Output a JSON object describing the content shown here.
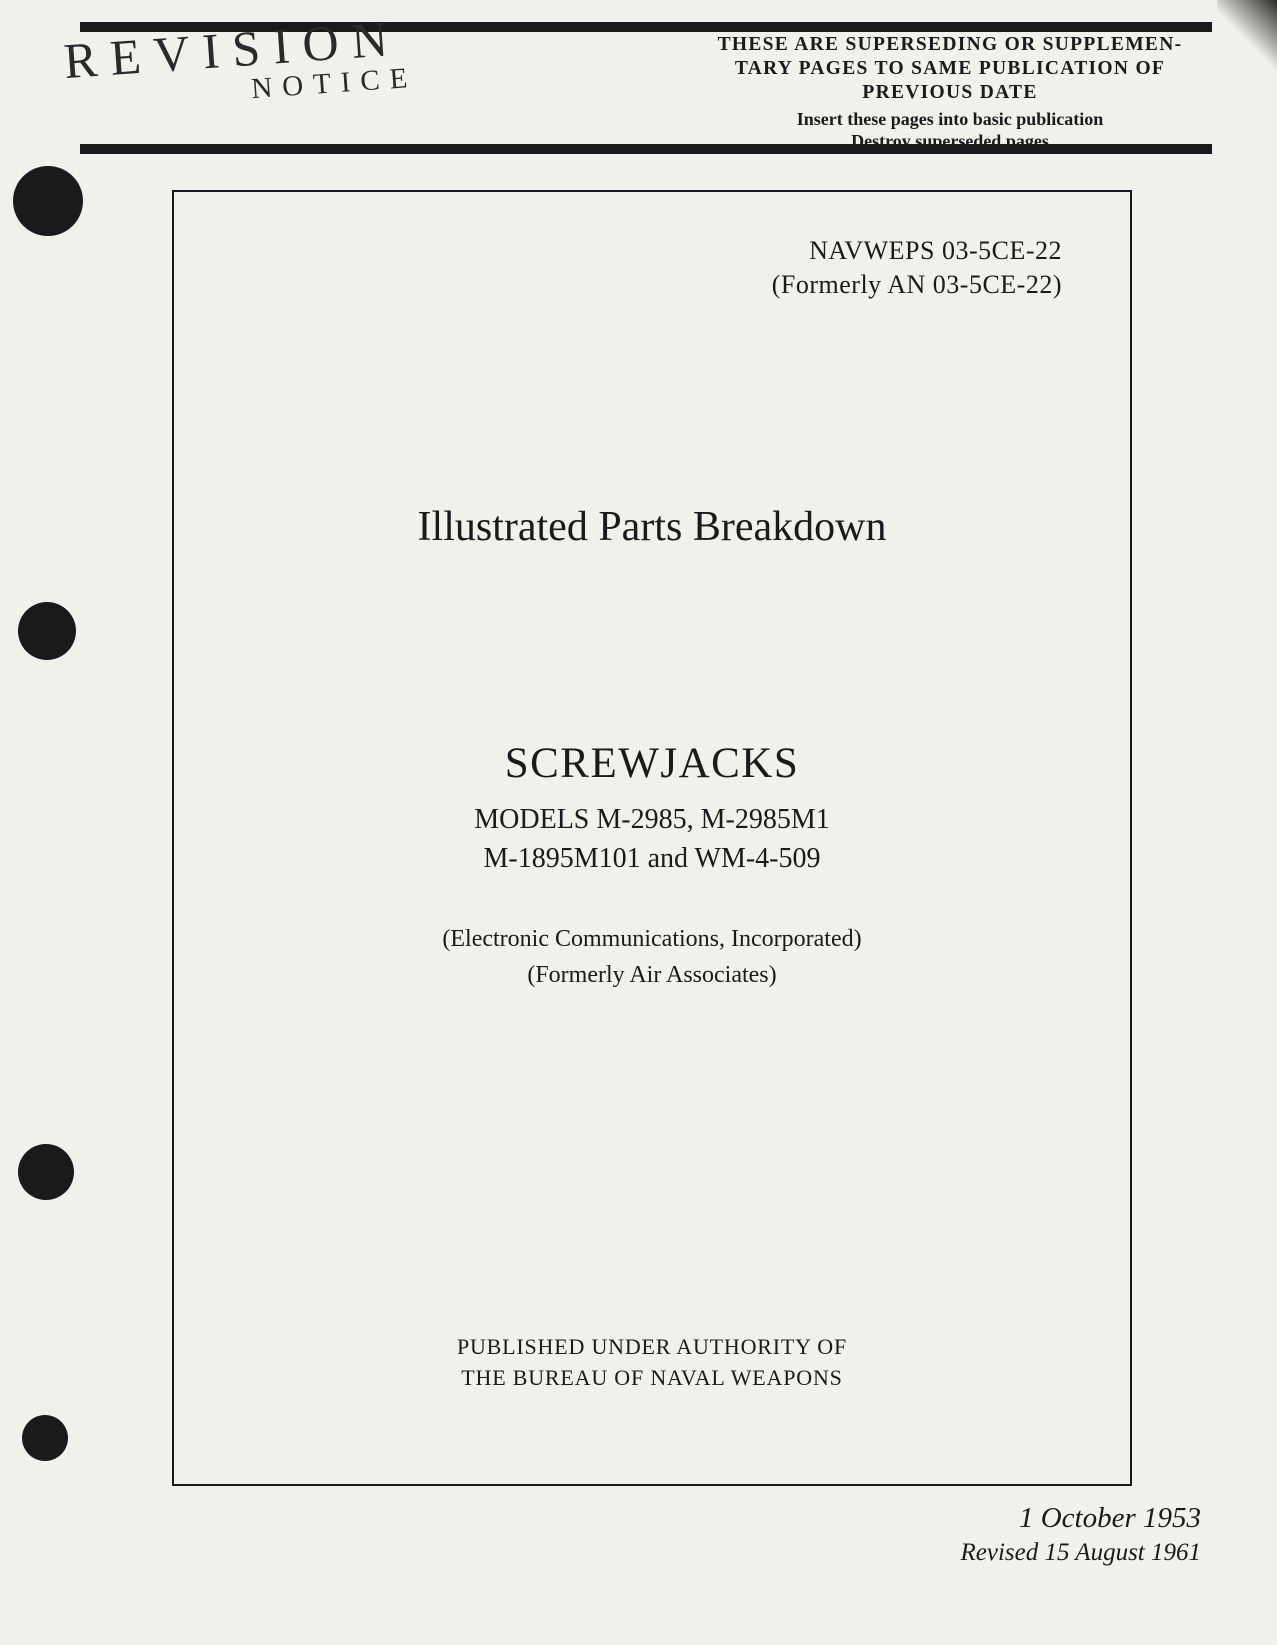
{
  "header": {
    "revision_stamp": "REVISION",
    "notice_stamp": "NOTICE",
    "supersede": {
      "line1": "THESE ARE SUPERSEDING OR SUPPLEMEN-",
      "line2": "TARY PAGES TO SAME PUBLICATION OF",
      "line3": "PREVIOUS DATE",
      "sub1": "Insert these pages into basic publication",
      "sub2": "Destroy superseded pages"
    }
  },
  "document": {
    "doc_id": "NAVWEPS 03-5CE-22",
    "doc_id_former": "(Formerly AN 03-5CE-22)",
    "main_title": "Illustrated Parts Breakdown",
    "subject_title": "SCREWJACKS",
    "models_line1": "MODELS M-2985, M-2985M1",
    "models_line2": "M-1895M101 and WM-4-509",
    "company_line1": "(Electronic Communications, Incorporated)",
    "company_line2": "(Formerly Air Associates)",
    "publisher_line1": "PUBLISHED UNDER AUTHORITY OF",
    "publisher_line2": "THE BUREAU OF NAVAL WEAPONS"
  },
  "dates": {
    "original": "1 October 1953",
    "revised": "Revised 15 August 1961"
  },
  "colors": {
    "page_background": "#f0f0ec",
    "text": "#1a1a1a",
    "bar": "#1a1a1a",
    "hole": "#1a1a1a"
  }
}
